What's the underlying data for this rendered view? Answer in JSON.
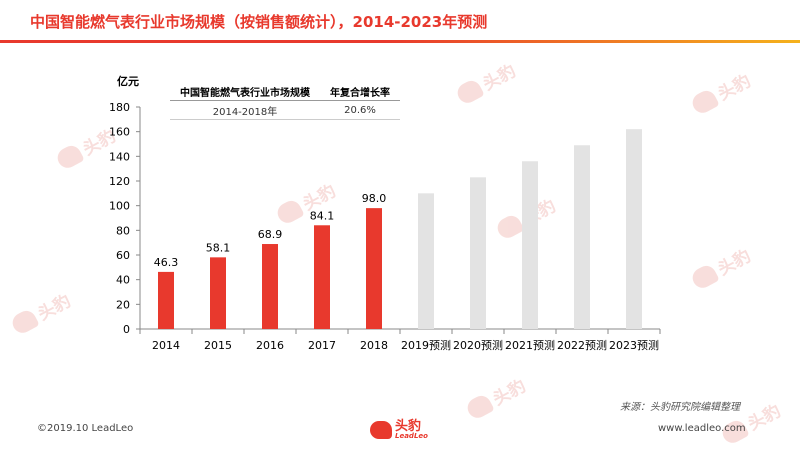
{
  "title": "中国智能燃气表行业市场规模（按销售额统计），2014-2023年预测",
  "unit_label": "亿元",
  "cagr_table": {
    "header": [
      "中国智能燃气表行业市场规模",
      "年复合增长率"
    ],
    "rows": [
      [
        "2014-2018年",
        "20.6%"
      ]
    ]
  },
  "source": "来源：头豹研究院编辑整理",
  "copyright": "©2019.10 LeadLeo",
  "website": "www.leadleo.com",
  "logo": {
    "cn": "头豹",
    "en": "LeadLeo"
  },
  "watermark": {
    "cn": "头豹",
    "en": "LeadLeo"
  },
  "colors": {
    "actual": "#e8392d",
    "forecast": "#e3e3e3",
    "title": "#e8392d",
    "accent": "#f5b21c"
  },
  "chart_data": {
    "type": "bar",
    "categories": [
      "2014",
      "2015",
      "2016",
      "2017",
      "2018",
      "2019预测",
      "2020预测",
      "2021预测",
      "2022预测",
      "2023预测"
    ],
    "values": [
      46.3,
      58.1,
      68.9,
      84.1,
      98.0,
      110,
      123,
      136,
      149,
      162
    ],
    "data_labels": [
      "46.3",
      "58.1",
      "68.9",
      "84.1",
      "98.0",
      "",
      "",
      "",
      "",
      ""
    ],
    "series_kind": [
      "actual",
      "actual",
      "actual",
      "actual",
      "actual",
      "forecast",
      "forecast",
      "forecast",
      "forecast",
      "forecast"
    ],
    "ylabel": "亿元",
    "ylim": [
      0,
      180
    ],
    "yticks": [
      0,
      20,
      40,
      60,
      80,
      100,
      120,
      140,
      160,
      180
    ],
    "grid": false
  }
}
